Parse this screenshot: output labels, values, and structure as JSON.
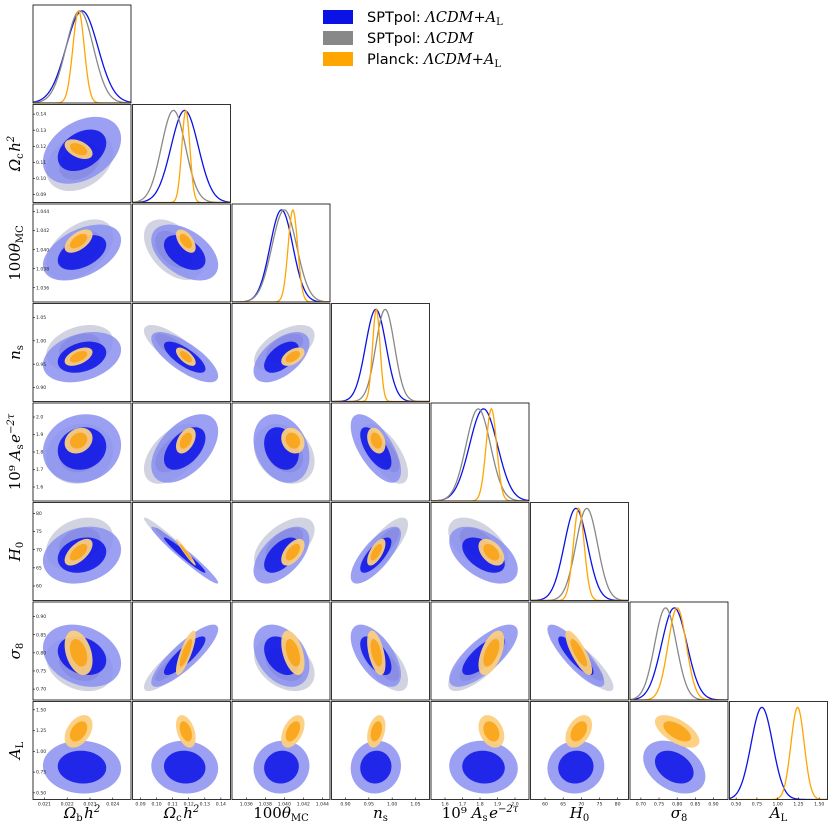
{
  "chart_data": {
    "type": "triangle-corner-plot",
    "legend": [
      {
        "prefix": "SPTpol: ",
        "model": "ΛCDM+",
        "param": "A",
        "sub": "L",
        "color": "#0a12e6"
      },
      {
        "prefix": "SPTpol: ",
        "model": "ΛCDM",
        "param": "",
        "sub": "",
        "color": "#888888"
      },
      {
        "prefix": "Planck: ",
        "model": "ΛCDM+",
        "param": "A",
        "sub": "L",
        "color": "#ffa500"
      }
    ],
    "legend_position": "top-right",
    "params": [
      {
        "key": "omb",
        "sym": "Ω",
        "sub": "b",
        "tail": "h",
        "sup": "2",
        "pre": "",
        "range": [
          0.0205,
          0.0248
        ],
        "ticks": [
          "0.021",
          "0.022",
          "0.023",
          "0.024"
        ],
        "tickvals": [
          0.021,
          0.022,
          0.023,
          0.024
        ]
      },
      {
        "key": "omc",
        "sym": "Ω",
        "sub": "c",
        "tail": "h",
        "sup": "2",
        "pre": "",
        "range": [
          0.085,
          0.146
        ],
        "ticks": [
          "0.09",
          "0.10",
          "0.11",
          "0.12",
          "0.13",
          "0.14"
        ],
        "tickvals": [
          0.09,
          0.1,
          0.11,
          0.12,
          0.13,
          0.14
        ]
      },
      {
        "key": "theta",
        "sym": "θ",
        "sub": "MC",
        "tail": "",
        "sup": "",
        "pre": "100",
        "range": [
          1.0345,
          1.0448
        ],
        "ticks": [
          "1.036",
          "1.038",
          "1.040",
          "1.042",
          "1.044"
        ],
        "tickvals": [
          1.036,
          1.038,
          1.04,
          1.042,
          1.044
        ]
      },
      {
        "key": "ns",
        "sym": "n",
        "sub": "s",
        "tail": "",
        "sup": "",
        "pre": "",
        "range": [
          0.87,
          1.08
        ],
        "ticks": [
          "0.90",
          "0.95",
          "1.00",
          "1.05"
        ],
        "tickvals": [
          0.9,
          0.95,
          1.0,
          1.05
        ]
      },
      {
        "key": "as",
        "sym": "A",
        "sub": "s",
        "tail": "e",
        "sup": "−2τ",
        "pre": "10⁹ ",
        "range": [
          1.52,
          2.08
        ],
        "ticks": [
          "1.6",
          "1.7",
          "1.8",
          "1.9",
          "2.0"
        ],
        "tickvals": [
          1.6,
          1.7,
          1.8,
          1.9,
          2.0
        ]
      },
      {
        "key": "h0",
        "sym": "H",
        "sub": "0",
        "tail": "",
        "sup": "",
        "pre": "",
        "range": [
          56,
          83
        ],
        "ticks": [
          "60",
          "65",
          "70",
          "75",
          "80"
        ],
        "tickvals": [
          60,
          65,
          70,
          75,
          80
        ]
      },
      {
        "key": "s8",
        "sym": "σ",
        "sub": "8",
        "tail": "",
        "sup": "",
        "pre": "",
        "range": [
          0.67,
          0.94
        ],
        "ticks": [
          "0.70",
          "0.75",
          "0.80",
          "0.85",
          "0.90"
        ],
        "tickvals": [
          0.7,
          0.75,
          0.8,
          0.85,
          0.9
        ]
      },
      {
        "key": "al",
        "sym": "A",
        "sub": "L",
        "tail": "",
        "sup": "",
        "pre": "",
        "range": [
          0.42,
          1.6
        ],
        "ticks": [
          "0.50",
          "0.75",
          "1.00",
          "1.25",
          "1.50"
        ],
        "tickvals": [
          0.5,
          0.75,
          1.0,
          1.25,
          1.5
        ]
      }
    ],
    "series": [
      {
        "name": "SPTpol: ΛCDM+A_L",
        "key": "blue",
        "color": "#0a12e6",
        "fill_outer": "#8a8ff0",
        "fill_inner": "#0a12e6",
        "mean": [
          0.02265,
          0.1175,
          1.0397,
          0.965,
          1.82,
          68.5,
          0.792,
          0.81
        ],
        "sigma": [
          0.0007,
          0.0085,
          0.0012,
          0.022,
          0.08,
          3.2,
          0.035,
          0.13
        ]
      },
      {
        "name": "SPTpol: ΛCDM",
        "key": "gray",
        "color": "#888888",
        "fill_outer": "#c2c4d6",
        "fill_inner": "#6e7090",
        "mean": [
          0.02255,
          0.1105,
          1.04,
          0.985,
          1.79,
          71.5,
          0.768,
          null
        ],
        "sigma": [
          0.0006,
          0.0075,
          0.0013,
          0.02,
          0.07,
          3.0,
          0.03,
          null
        ]
      },
      {
        "name": "Planck: ΛCDM+A_L",
        "key": "orange",
        "color": "#ffa500",
        "fill_outer": "#fccf7d",
        "fill_inner": "#f9a51a",
        "mean": [
          0.0225,
          0.1182,
          1.0409,
          0.966,
          1.865,
          69.3,
          0.8,
          1.24
        ],
        "sigma": [
          0.00025,
          0.0025,
          0.0005,
          0.008,
          0.03,
          1.5,
          0.025,
          0.08
        ]
      }
    ],
    "correlations": {
      "blue": [
        [
          1,
          0.35,
          0.45,
          0.3,
          0.1,
          0.2,
          -0.25,
          -0.05
        ],
        [
          0.35,
          1,
          -0.45,
          -0.75,
          0.5,
          -0.97,
          0.85,
          -0.05
        ],
        [
          0.45,
          -0.45,
          1,
          0.55,
          -0.25,
          0.55,
          -0.35,
          0.05
        ],
        [
          0.3,
          -0.75,
          0.55,
          1,
          -0.65,
          0.75,
          -0.6,
          0.05
        ],
        [
          0.1,
          0.5,
          -0.25,
          -0.65,
          1,
          -0.5,
          0.75,
          -0.05
        ],
        [
          0.2,
          -0.97,
          0.55,
          0.75,
          -0.5,
          1,
          -0.85,
          0.05
        ],
        [
          -0.25,
          0.85,
          -0.35,
          -0.6,
          0.75,
          -0.85,
          1,
          -0.35
        ],
        [
          -0.05,
          -0.05,
          0.05,
          0.05,
          -0.05,
          0.05,
          -0.35,
          1
        ]
      ],
      "gray": [
        [
          1,
          0.3,
          0.45,
          0.3,
          0.1,
          0.25,
          -0.25,
          0
        ],
        [
          0.3,
          1,
          -0.45,
          -0.75,
          0.5,
          -0.97,
          0.85,
          0
        ],
        [
          0.45,
          -0.45,
          1,
          0.55,
          -0.25,
          0.55,
          -0.35,
          0
        ],
        [
          0.3,
          -0.75,
          0.55,
          1,
          -0.65,
          0.75,
          -0.6,
          0
        ],
        [
          0.1,
          0.5,
          -0.25,
          -0.65,
          1,
          -0.5,
          0.75,
          0
        ],
        [
          0.25,
          -0.97,
          0.55,
          0.75,
          -0.5,
          1,
          -0.85,
          0
        ],
        [
          -0.25,
          0.85,
          -0.35,
          -0.6,
          0.75,
          -0.85,
          1,
          0
        ],
        [
          0,
          0,
          0,
          0,
          0,
          0,
          0,
          1
        ]
      ],
      "orange": [
        [
          1,
          -0.45,
          0.55,
          0.5,
          0.2,
          0.6,
          -0.35,
          0.4
        ],
        [
          -0.45,
          1,
          -0.55,
          -0.65,
          0.45,
          -0.97,
          0.8,
          -0.4
        ],
        [
          0.55,
          -0.55,
          1,
          0.5,
          -0.2,
          0.55,
          -0.45,
          0.45
        ],
        [
          0.5,
          -0.65,
          0.5,
          1,
          -0.3,
          0.65,
          -0.5,
          0.35
        ],
        [
          0.2,
          0.45,
          -0.2,
          -0.3,
          1,
          -0.45,
          0.55,
          -0.3
        ],
        [
          0.6,
          -0.97,
          0.55,
          0.65,
          -0.45,
          1,
          -0.8,
          0.4
        ],
        [
          -0.35,
          0.8,
          -0.45,
          -0.5,
          0.55,
          -0.8,
          1,
          -0.6
        ],
        [
          0.4,
          -0.4,
          0.45,
          0.35,
          -0.3,
          0.4,
          -0.6,
          1
        ]
      ]
    },
    "contour_levels_sigma": [
      1,
      2
    ],
    "grid": false
  }
}
